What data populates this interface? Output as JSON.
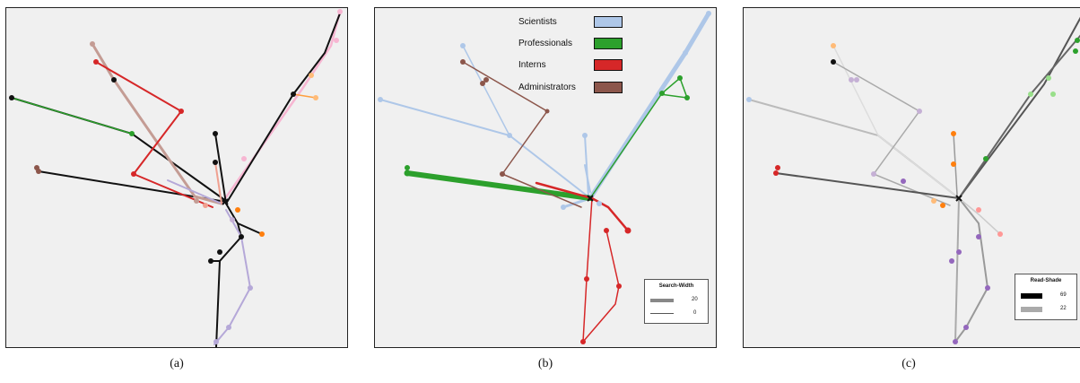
{
  "panels": [
    {
      "caption": "(a)"
    },
    {
      "caption": "(b)"
    },
    {
      "caption": "(c)"
    }
  ],
  "legend_b": {
    "items": [
      {
        "label": "Scientists",
        "color": "#aec7e8"
      },
      {
        "label": "Professionals",
        "color": "#2ca02c"
      },
      {
        "label": "Interns",
        "color": "#d62728"
      },
      {
        "label": "Administrators",
        "color": "#8c564b"
      }
    ]
  },
  "search_width": {
    "title": "Search-Width",
    "max": "20",
    "min": "0"
  },
  "read_shade": {
    "title": "Read-Shade",
    "max": "69",
    "min": "22"
  }
}
